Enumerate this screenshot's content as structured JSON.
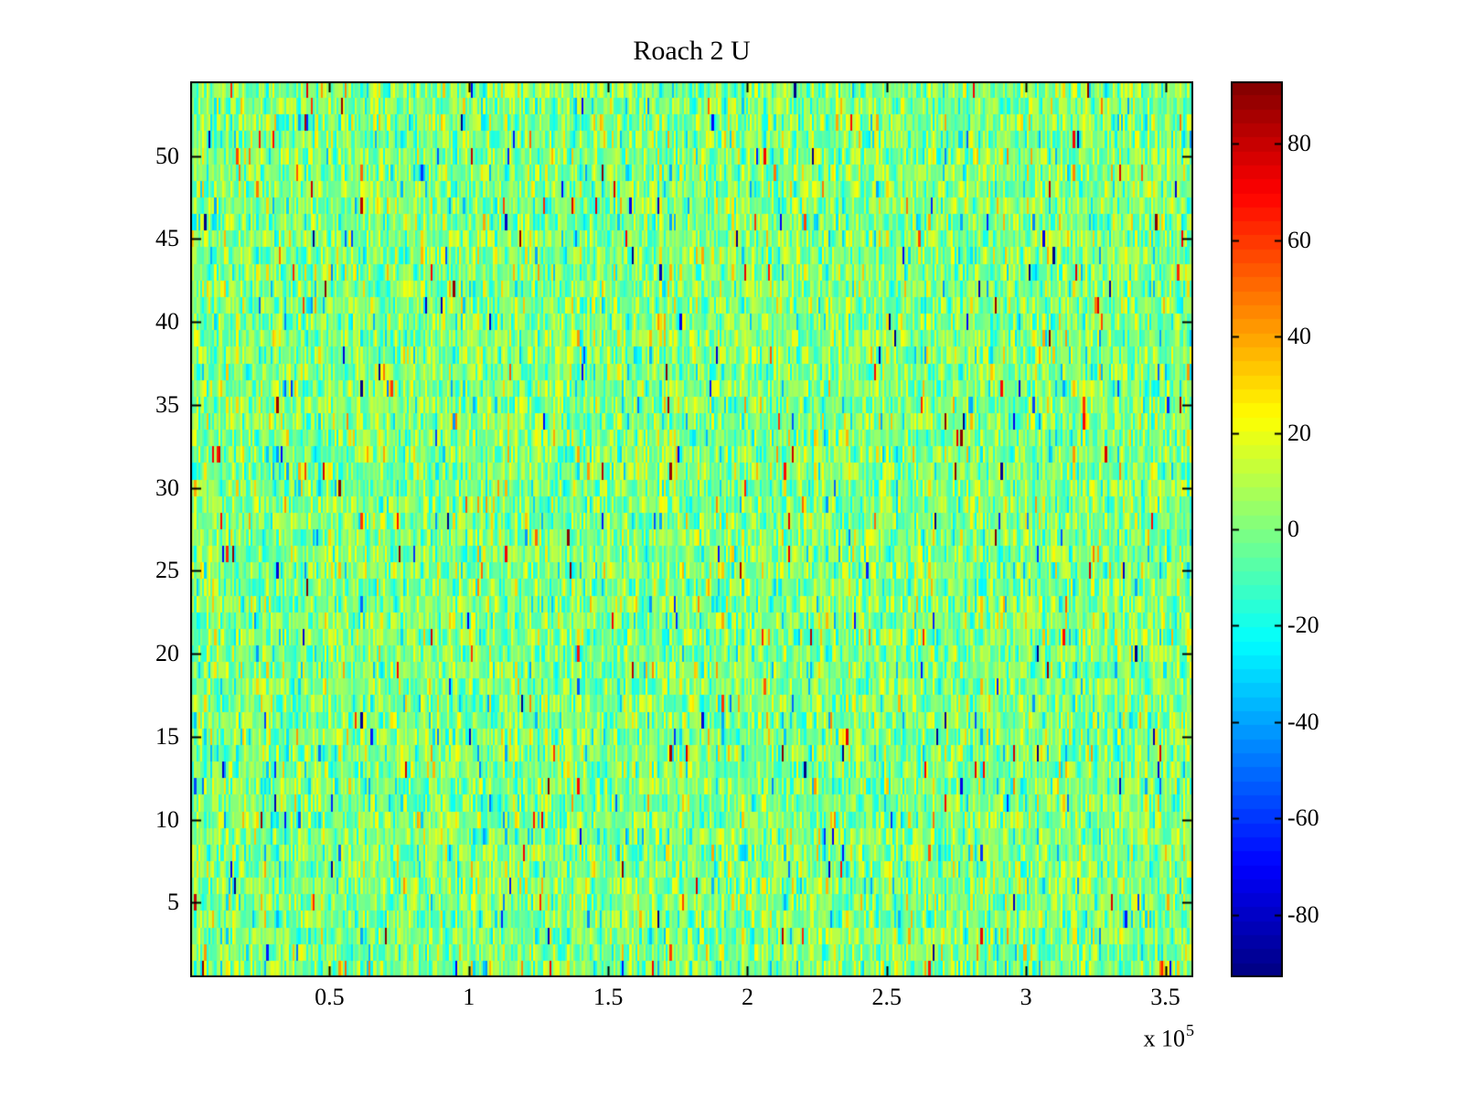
{
  "figure": {
    "background_color": "#ffffff",
    "axis_color": "#000000",
    "text_color": "#000000"
  },
  "chart_data": {
    "type": "heatmap",
    "title": "Roach 2 U",
    "colormap": "jet",
    "x_axis": {
      "min": 0,
      "max": 360000,
      "tick_values": [
        50000,
        100000,
        150000,
        200000,
        250000,
        300000,
        350000
      ],
      "tick_labels": [
        "0.5",
        "1",
        "1.5",
        "2",
        "2.5",
        "3",
        "3.5"
      ],
      "exponent_prefix": "x 10",
      "exponent_value": "5",
      "tick_direction": "in"
    },
    "y_axis": {
      "min": 0.5,
      "max": 54.5,
      "tick_values": [
        5,
        10,
        15,
        20,
        25,
        30,
        35,
        40,
        45,
        50
      ],
      "tick_labels": [
        "5",
        "10",
        "15",
        "20",
        "25",
        "30",
        "35",
        "40",
        "45",
        "50"
      ],
      "tick_direction": "in"
    },
    "colorbar": {
      "min": -93,
      "max": 93,
      "levels": 64,
      "tick_values": [
        80,
        60,
        40,
        20,
        0,
        -20,
        -40,
        -60,
        -80
      ],
      "tick_labels": [
        "80",
        "60",
        "40",
        "20",
        "0",
        "-20",
        "-40",
        "-60",
        "-80"
      ]
    },
    "grid": {
      "rows": 54,
      "cols": 500
    },
    "noise_model": {
      "seed": 1234567,
      "sigma": 14,
      "outlier_prob": 0.015,
      "outlier_min": 30,
      "outlier_max": 92
    }
  }
}
